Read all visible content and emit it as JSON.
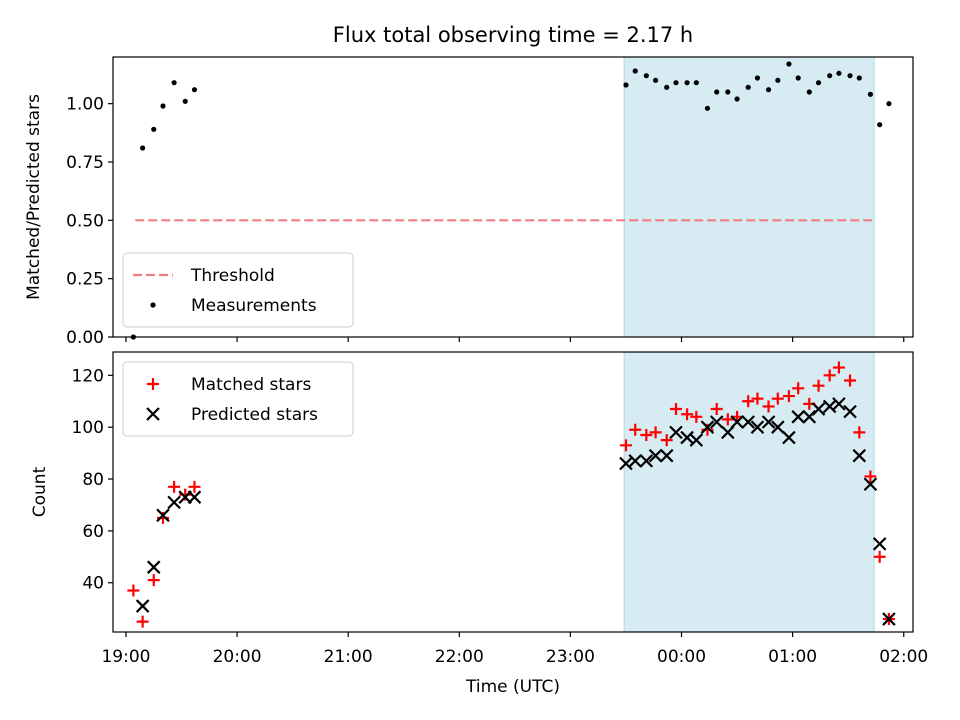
{
  "chart_data": {
    "type": "scatter",
    "title": "Flux total observing time = 2.17 h",
    "x_axis": {
      "label": "Time (UTC)",
      "range": [
        "18:53",
        "02:05"
      ],
      "ticks": [
        "19:00",
        "20:00",
        "21:00",
        "22:00",
        "23:00",
        "00:00",
        "01:00",
        "02:00"
      ]
    },
    "highlight_span": {
      "start": "23:29",
      "end": "01:44",
      "color": "#add8e6"
    },
    "panels": [
      {
        "name": "ratio",
        "ylabel": "Matched/Predicted stars",
        "ylim": [
          0,
          1.2
        ],
        "yticks": [
          "0.00",
          "0.25",
          "0.50",
          "0.75",
          "1.00"
        ],
        "legend_position": "lower-left",
        "threshold": {
          "name": "Threshold",
          "value": 0.5,
          "x_start": "19:05",
          "x_end": "01:44",
          "color": "#f08080"
        },
        "series": [
          {
            "name": "Measurements",
            "marker": "dot",
            "color": "#000000",
            "points": [
              {
                "x": "19:04",
                "y": 0.0
              },
              {
                "x": "19:09",
                "y": 0.81
              },
              {
                "x": "19:15",
                "y": 0.89
              },
              {
                "x": "19:20",
                "y": 0.99
              },
              {
                "x": "19:26",
                "y": 1.09
              },
              {
                "x": "19:32",
                "y": 1.01
              },
              {
                "x": "19:37",
                "y": 1.06
              },
              {
                "x": "23:30",
                "y": 1.08
              },
              {
                "x": "23:35",
                "y": 1.14
              },
              {
                "x": "23:41",
                "y": 1.12
              },
              {
                "x": "23:46",
                "y": 1.1
              },
              {
                "x": "23:52",
                "y": 1.07
              },
              {
                "x": "23:57",
                "y": 1.09
              },
              {
                "x": "00:03",
                "y": 1.09
              },
              {
                "x": "00:08",
                "y": 1.09
              },
              {
                "x": "00:14",
                "y": 0.98
              },
              {
                "x": "00:19",
                "y": 1.05
              },
              {
                "x": "00:25",
                "y": 1.05
              },
              {
                "x": "00:30",
                "y": 1.02
              },
              {
                "x": "00:36",
                "y": 1.07
              },
              {
                "x": "00:41",
                "y": 1.11
              },
              {
                "x": "00:47",
                "y": 1.06
              },
              {
                "x": "00:52",
                "y": 1.1
              },
              {
                "x": "00:58",
                "y": 1.17
              },
              {
                "x": "01:03",
                "y": 1.11
              },
              {
                "x": "01:09",
                "y": 1.05
              },
              {
                "x": "01:14",
                "y": 1.09
              },
              {
                "x": "01:20",
                "y": 1.12
              },
              {
                "x": "01:25",
                "y": 1.13
              },
              {
                "x": "01:31",
                "y": 1.12
              },
              {
                "x": "01:36",
                "y": 1.11
              },
              {
                "x": "01:42",
                "y": 1.04
              },
              {
                "x": "01:47",
                "y": 0.91
              },
              {
                "x": "01:52",
                "y": 1.0
              }
            ]
          }
        ]
      },
      {
        "name": "count",
        "ylabel": "Count",
        "ylim": [
          21,
          129
        ],
        "yticks": [
          "40",
          "60",
          "80",
          "100",
          "120"
        ],
        "legend_position": "upper-left",
        "series": [
          {
            "name": "Matched stars",
            "marker": "plus",
            "color": "#ff0000",
            "points": [
              {
                "x": "19:04",
                "y": 37
              },
              {
                "x": "19:09",
                "y": 25
              },
              {
                "x": "19:15",
                "y": 41
              },
              {
                "x": "19:20",
                "y": 65
              },
              {
                "x": "19:26",
                "y": 77
              },
              {
                "x": "19:32",
                "y": 74
              },
              {
                "x": "19:37",
                "y": 77
              },
              {
                "x": "23:30",
                "y": 93
              },
              {
                "x": "23:35",
                "y": 99
              },
              {
                "x": "23:41",
                "y": 97
              },
              {
                "x": "23:46",
                "y": 98
              },
              {
                "x": "23:52",
                "y": 95
              },
              {
                "x": "23:57",
                "y": 107
              },
              {
                "x": "00:03",
                "y": 105
              },
              {
                "x": "00:08",
                "y": 104
              },
              {
                "x": "00:14",
                "y": 99
              },
              {
                "x": "00:19",
                "y": 107
              },
              {
                "x": "00:25",
                "y": 103
              },
              {
                "x": "00:30",
                "y": 104
              },
              {
                "x": "00:36",
                "y": 110
              },
              {
                "x": "00:41",
                "y": 111
              },
              {
                "x": "00:47",
                "y": 108
              },
              {
                "x": "00:52",
                "y": 111
              },
              {
                "x": "00:58",
                "y": 112
              },
              {
                "x": "01:03",
                "y": 115
              },
              {
                "x": "01:09",
                "y": 109
              },
              {
                "x": "01:14",
                "y": 116
              },
              {
                "x": "01:20",
                "y": 120
              },
              {
                "x": "01:25",
                "y": 123
              },
              {
                "x": "01:31",
                "y": 118
              },
              {
                "x": "01:36",
                "y": 98
              },
              {
                "x": "01:42",
                "y": 81
              },
              {
                "x": "01:47",
                "y": 50
              },
              {
                "x": "01:52",
                "y": 26
              }
            ]
          },
          {
            "name": "Predicted stars",
            "marker": "x",
            "color": "#000000",
            "points": [
              {
                "x": "19:09",
                "y": 31
              },
              {
                "x": "19:15",
                "y": 46
              },
              {
                "x": "19:20",
                "y": 66
              },
              {
                "x": "19:26",
                "y": 71
              },
              {
                "x": "19:32",
                "y": 73
              },
              {
                "x": "19:37",
                "y": 73
              },
              {
                "x": "23:30",
                "y": 86
              },
              {
                "x": "23:35",
                "y": 87
              },
              {
                "x": "23:41",
                "y": 87
              },
              {
                "x": "23:46",
                "y": 89
              },
              {
                "x": "23:52",
                "y": 89
              },
              {
                "x": "23:57",
                "y": 98
              },
              {
                "x": "00:03",
                "y": 96
              },
              {
                "x": "00:08",
                "y": 95
              },
              {
                "x": "00:14",
                "y": 100
              },
              {
                "x": "00:19",
                "y": 102
              },
              {
                "x": "00:25",
                "y": 98
              },
              {
                "x": "00:30",
                "y": 102
              },
              {
                "x": "00:36",
                "y": 102
              },
              {
                "x": "00:41",
                "y": 100
              },
              {
                "x": "00:47",
                "y": 102
              },
              {
                "x": "00:52",
                "y": 100
              },
              {
                "x": "00:58",
                "y": 96
              },
              {
                "x": "01:03",
                "y": 104
              },
              {
                "x": "01:09",
                "y": 104
              },
              {
                "x": "01:14",
                "y": 107
              },
              {
                "x": "01:20",
                "y": 108
              },
              {
                "x": "01:25",
                "y": 109
              },
              {
                "x": "01:31",
                "y": 106
              },
              {
                "x": "01:36",
                "y": 89
              },
              {
                "x": "01:42",
                "y": 78
              },
              {
                "x": "01:47",
                "y": 55
              },
              {
                "x": "01:52",
                "y": 26
              }
            ]
          }
        ]
      }
    ]
  }
}
